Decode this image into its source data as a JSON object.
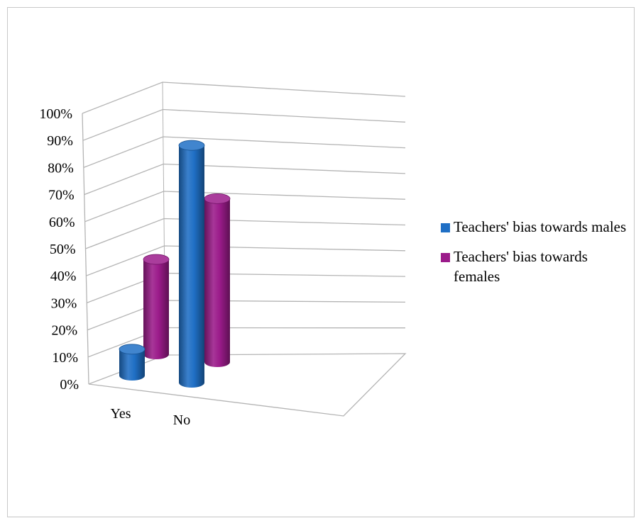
{
  "chart_data": {
    "type": "bar",
    "title": "",
    "xlabel": "",
    "ylabel": "",
    "categories": [
      "Yes",
      "No"
    ],
    "series": [
      {
        "name": "Teachers'  bias towards males",
        "values": [
          10,
          90
        ],
        "color": "#1f6fc5"
      },
      {
        "name": "Teachers' bias towards females",
        "values": [
          36,
          62
        ],
        "color": "#9b1b8a"
      }
    ],
    "ylim": [
      0,
      100
    ],
    "yticks": [
      "0%",
      "10%",
      "20%",
      "30%",
      "40%",
      "50%",
      "60%",
      "70%",
      "80%",
      "90%",
      "100%"
    ],
    "grid": true,
    "legend": "right",
    "style": "3d-cylinder"
  }
}
